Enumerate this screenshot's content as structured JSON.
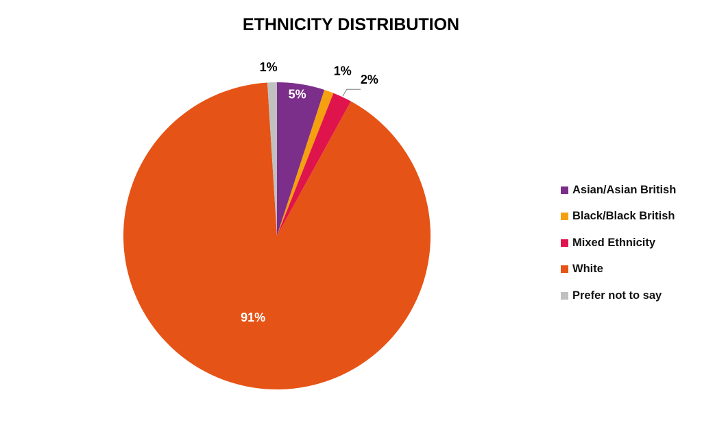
{
  "chart_data": {
    "type": "pie",
    "title": "ETHNICITY DISTRIBUTION",
    "categories": [
      "Asian/Asian British",
      "Black/Black British",
      "Mixed Ethnicity",
      "White",
      "Prefer not to say"
    ],
    "values": [
      5,
      1,
      2,
      91,
      1
    ],
    "data_labels": [
      "5%",
      "1%",
      "2%",
      "91%",
      "1%"
    ],
    "colors": [
      "#7B2F8B",
      "#F5A00F",
      "#E0144C",
      "#E65316",
      "#C0C0C0"
    ],
    "legend_position": "right"
  }
}
